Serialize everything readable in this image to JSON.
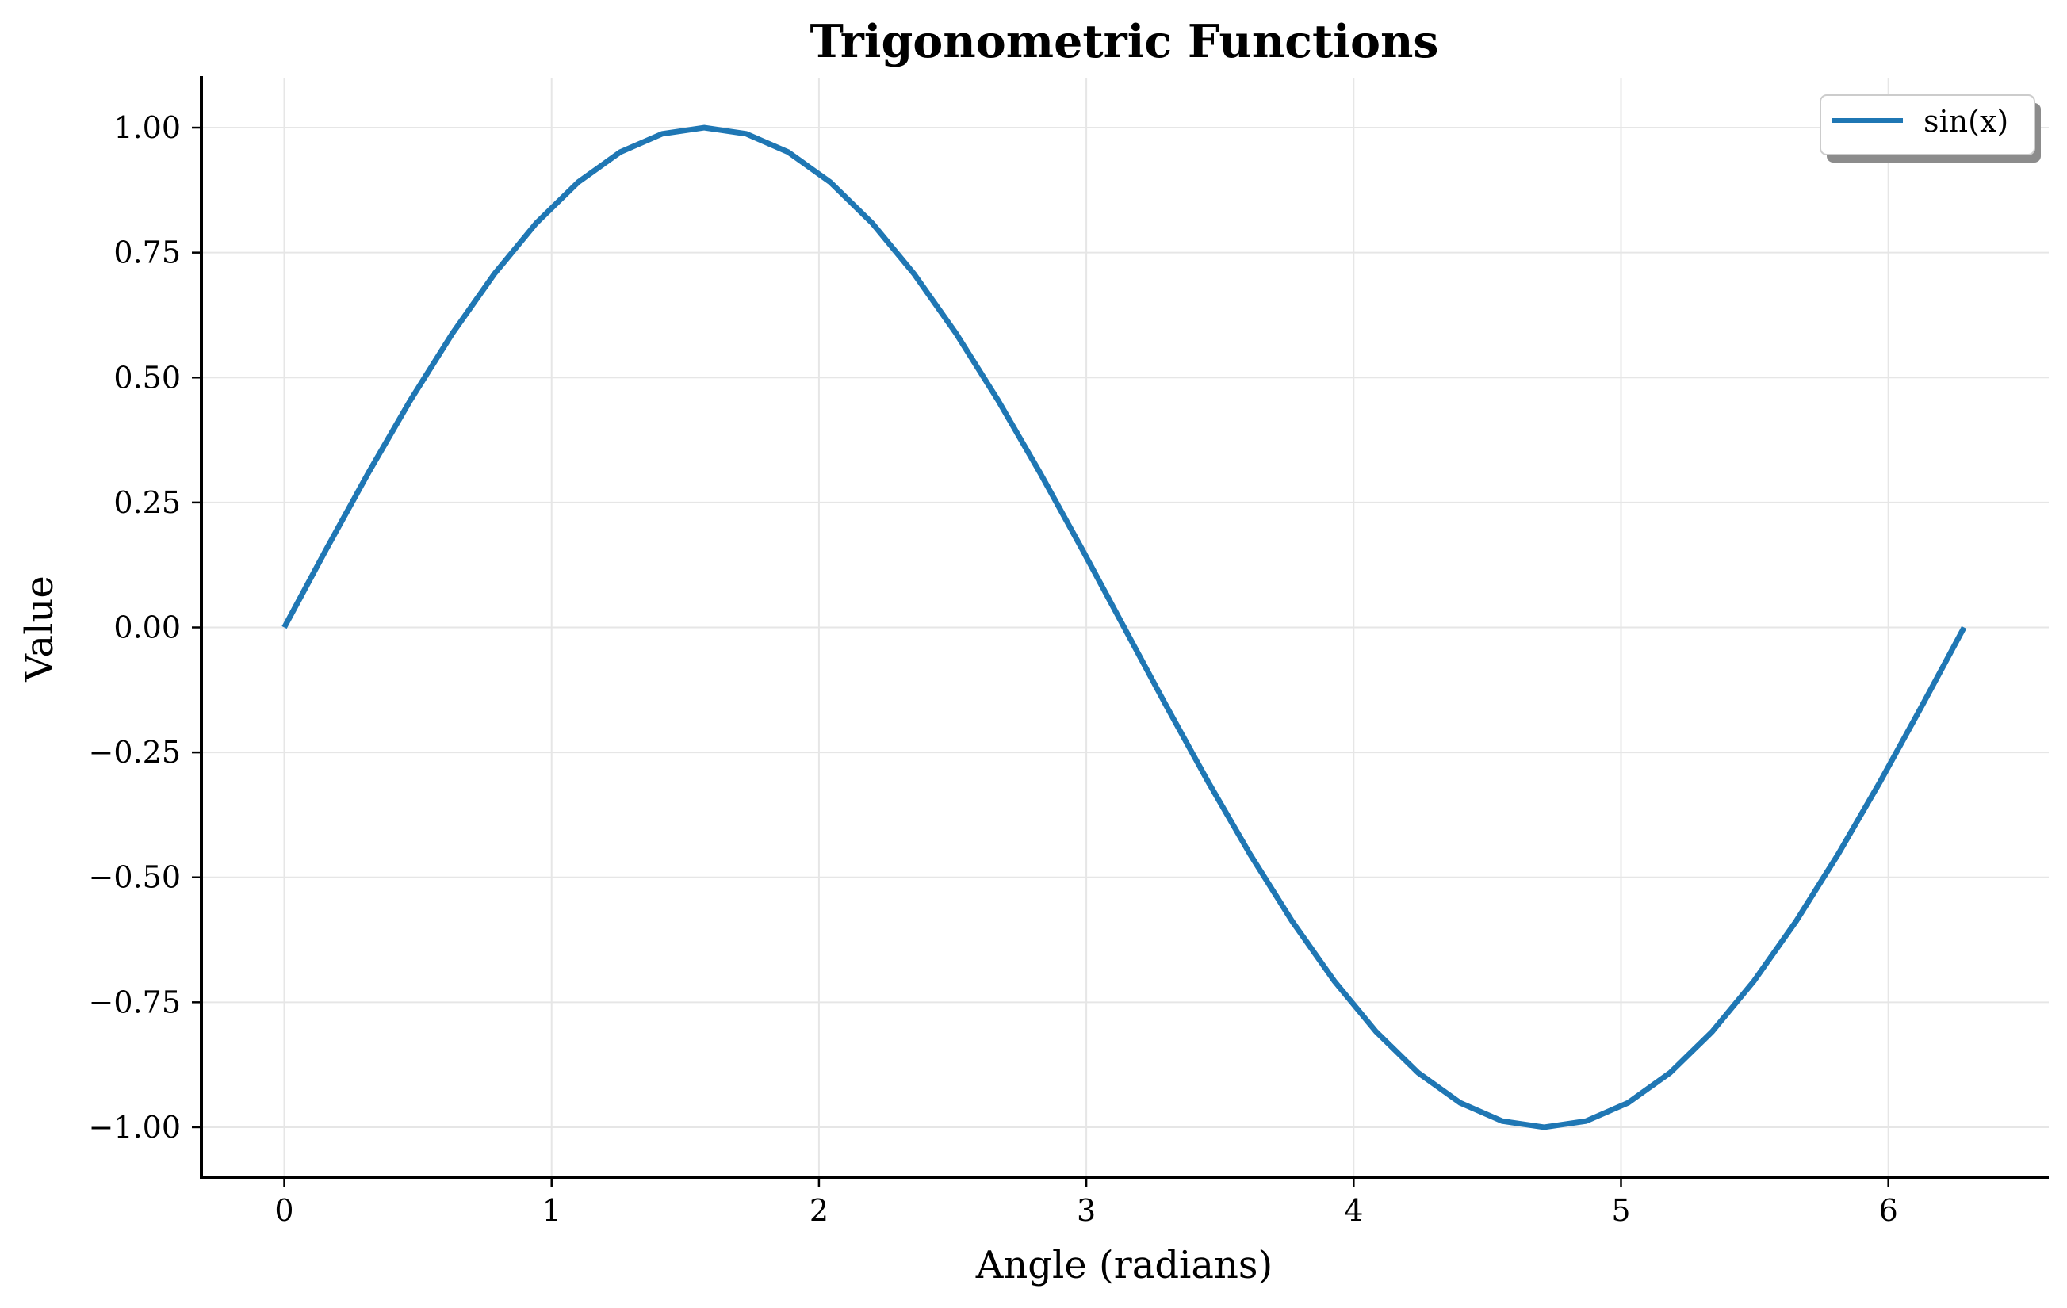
{
  "chart_data": {
    "type": "line",
    "title": "Trigonometric Functions",
    "xlabel": "Angle (radians)",
    "ylabel": "Value",
    "xlim": [
      -0.31,
      6.6
    ],
    "ylim": [
      -1.1,
      1.1
    ],
    "x_ticks": [
      0,
      1,
      2,
      3,
      4,
      5,
      6
    ],
    "x_tick_labels": [
      "0",
      "1",
      "2",
      "3",
      "4",
      "5",
      "6"
    ],
    "y_ticks": [
      1.0,
      0.75,
      0.5,
      0.25,
      0.0,
      -0.25,
      -0.5,
      -0.75,
      -1.0
    ],
    "y_tick_labels": [
      "1.00",
      "0.75",
      "0.50",
      "0.25",
      "0.00",
      "−0.25",
      "−0.50",
      "−0.75",
      "−1.00"
    ],
    "grid": true,
    "legend_position": "top-right",
    "series": [
      {
        "name": "sin(x)",
        "color": "#1f77b4",
        "x": [
          0.0,
          0.1571,
          0.3142,
          0.4712,
          0.6283,
          0.7854,
          0.9425,
          1.0996,
          1.2566,
          1.4137,
          1.5708,
          1.7279,
          1.885,
          2.042,
          2.1991,
          2.3562,
          2.5133,
          2.6704,
          2.8274,
          2.9845,
          3.1416,
          3.2987,
          3.4558,
          3.6128,
          3.7699,
          3.927,
          4.0841,
          4.2412,
          4.3982,
          4.5553,
          4.7124,
          4.8695,
          5.0265,
          5.1836,
          5.3407,
          5.4978,
          5.6549,
          5.8119,
          5.969,
          6.1261,
          6.2832
        ],
        "y": [
          0.0,
          0.1564,
          0.309,
          0.454,
          0.5878,
          0.7071,
          0.809,
          0.891,
          0.9511,
          0.9877,
          1.0,
          0.9877,
          0.9511,
          0.891,
          0.809,
          0.7071,
          0.5878,
          0.454,
          0.309,
          0.1564,
          0.0,
          -0.1564,
          -0.309,
          -0.454,
          -0.5878,
          -0.7071,
          -0.809,
          -0.891,
          -0.9511,
          -0.9877,
          -1.0,
          -0.9877,
          -0.9511,
          -0.891,
          -0.809,
          -0.7071,
          -0.5878,
          -0.454,
          -0.309,
          -0.1564,
          0.0
        ]
      }
    ]
  }
}
